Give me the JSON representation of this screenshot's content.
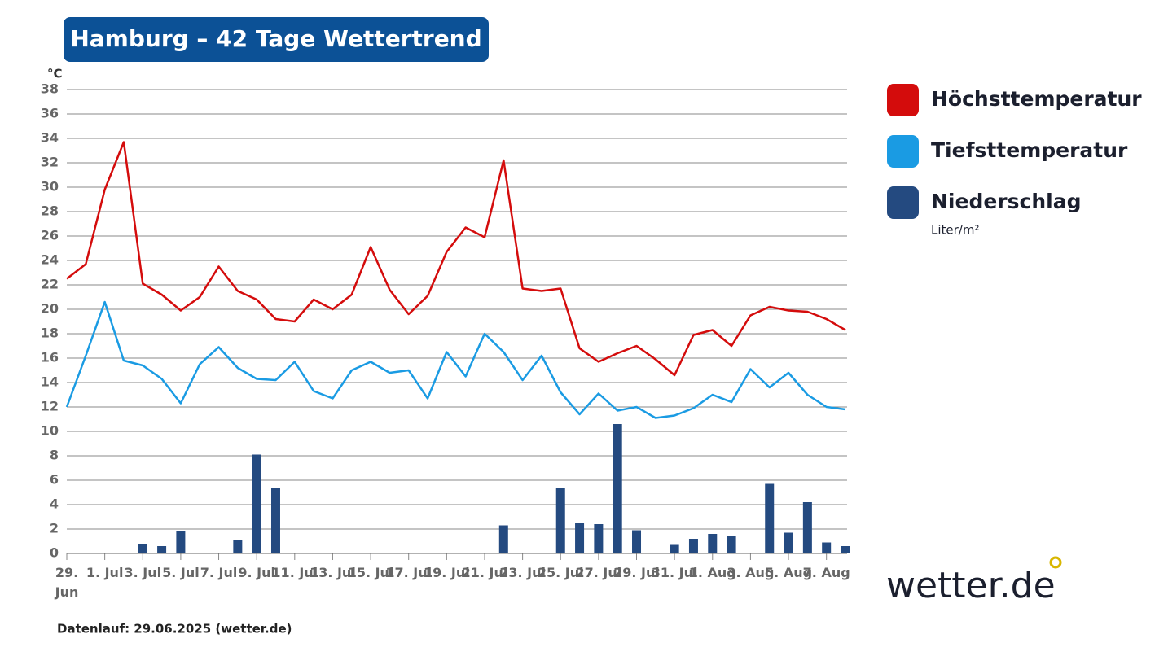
{
  "chart_data": {
    "type": "line",
    "title": "Hamburg – 42 Tage Wettertrend",
    "y_unit": "°C",
    "categories": [
      "29. Jun",
      null,
      "1. Jul",
      null,
      "3. Jul",
      null,
      "5. Jul",
      null,
      "7. Jul",
      null,
      "9. Jul",
      null,
      "11. Jul",
      null,
      "13. Jul",
      null,
      "15. Jul",
      null,
      "17. Jul",
      null,
      "19. Jul",
      null,
      "21. Jul",
      null,
      "23. Jul",
      null,
      "25. Jul",
      null,
      "27. Jul",
      null,
      "29. Jul",
      null,
      "31. Jul",
      null,
      "1. Aug",
      null,
      "3. Aug",
      null,
      "5. Aug",
      null,
      "7. Aug",
      null
    ],
    "series": [
      {
        "name": "Höchsttemperatur",
        "type": "line",
        "color": "#d40c0c",
        "values": [
          22.5,
          23.7,
          29.8,
          33.7,
          22.1,
          21.2,
          19.9,
          21.0,
          23.5,
          21.5,
          20.8,
          19.2,
          19.0,
          20.8,
          20.0,
          21.2,
          25.1,
          21.6,
          19.6,
          21.1,
          24.7,
          26.7,
          25.9,
          32.2,
          21.7,
          21.5,
          21.7,
          16.8,
          15.7,
          16.4,
          17.0,
          15.9,
          14.6,
          17.9,
          18.3,
          17.0,
          19.5,
          20.2,
          19.9,
          19.8,
          19.2,
          18.3
        ]
      },
      {
        "name": "Tiefsttemperatur",
        "type": "line",
        "color": "#1a9be3",
        "values": [
          12.0,
          16.2,
          20.6,
          15.8,
          15.4,
          14.3,
          12.3,
          15.5,
          16.9,
          15.2,
          14.3,
          14.2,
          15.7,
          13.3,
          12.7,
          15.0,
          15.7,
          14.8,
          15.0,
          12.7,
          16.5,
          14.5,
          18.0,
          16.5,
          14.2,
          16.2,
          13.2,
          11.4,
          13.1,
          11.7,
          12.0,
          11.1,
          11.3,
          11.9,
          13.0,
          12.4,
          15.1,
          13.6,
          14.8,
          13.0,
          12.0,
          11.8
        ]
      },
      {
        "name": "Niederschlag",
        "unit": "Liter/m²",
        "type": "bar",
        "color": "#244a80",
        "values": [
          0,
          0,
          0,
          0,
          0.8,
          0.6,
          1.8,
          0,
          0,
          1.1,
          8.1,
          5.4,
          0,
          0,
          0,
          0,
          0,
          0,
          0,
          0,
          0,
          0,
          0,
          2.3,
          0,
          0,
          5.4,
          2.5,
          2.4,
          10.6,
          1.9,
          0,
          0.7,
          1.2,
          1.6,
          1.4,
          0,
          5.7,
          1.7,
          4.2,
          0.9,
          0.6
        ]
      }
    ],
    "ylim": [
      0,
      38
    ],
    "yticks": [
      0,
      2,
      4,
      6,
      8,
      10,
      12,
      14,
      16,
      18,
      20,
      22,
      24,
      26,
      28,
      30,
      32,
      34,
      36,
      38
    ],
    "grid": true,
    "legend": "right",
    "footer": "Datenlauf: 29.06.2025 (wetter.de)",
    "logo": "wetter.de"
  }
}
